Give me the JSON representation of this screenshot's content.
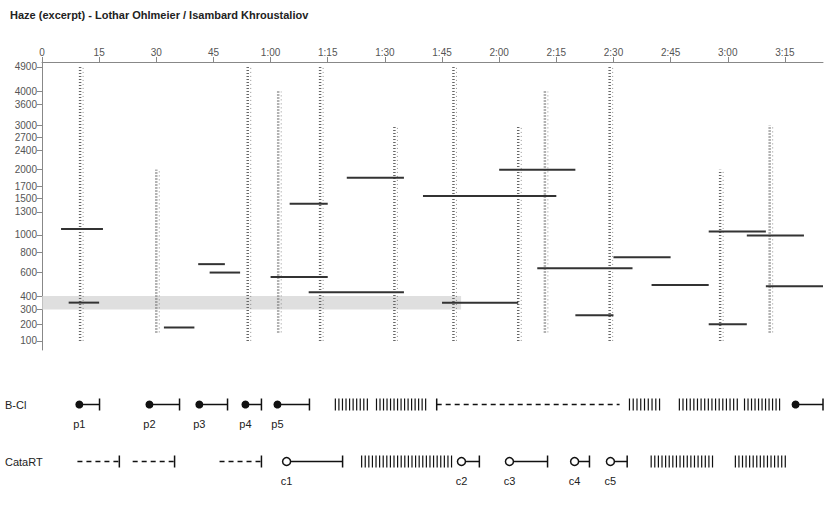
{
  "chart_data": {
    "type": "spectrogram",
    "title": "Haze (excerpt) - Lothar Ohlmeier / Isambard Khroustaliov",
    "xlim": [
      0,
      205
    ],
    "xticks": [
      0,
      15,
      30,
      45,
      {
        "value": 60,
        "label": "1:00"
      },
      {
        "value": 75,
        "label": "1:15"
      },
      {
        "value": 90,
        "label": "1:30"
      },
      {
        "value": 105,
        "label": "1:45"
      },
      {
        "value": 120,
        "label": "2:00"
      },
      {
        "value": 135,
        "label": "2:15"
      },
      {
        "value": 150,
        "label": "2:30"
      },
      {
        "value": 165,
        "label": "2:45"
      },
      {
        "value": 180,
        "label": "3:00"
      },
      {
        "value": 195,
        "label": "3:15"
      }
    ],
    "ylim": [
      50,
      5100
    ],
    "yticks": [
      100,
      200,
      300,
      400,
      600,
      800,
      1000,
      1300,
      1500,
      1700,
      2000,
      2400,
      2700,
      3000,
      3600,
      4000,
      4900
    ],
    "grid": false,
    "color": "#333333",
    "highlight": {
      "start": 0,
      "end": 110,
      "low": 300,
      "high": 400,
      "color": "#d4d4d4"
    },
    "bursts": {
      "color": "#666666",
      "items": [
        {
          "time": 10,
          "low": 100,
          "high": 4900
        },
        {
          "time": 30,
          "low": 150,
          "high": 2000
        },
        {
          "time": 54,
          "low": 100,
          "high": 4900
        },
        {
          "time": 62,
          "low": 150,
          "high": 4000
        },
        {
          "time": 73,
          "low": 100,
          "high": 4900
        },
        {
          "time": 92.5,
          "low": 100,
          "high": 3000
        },
        {
          "time": 108,
          "low": 100,
          "high": 4900
        },
        {
          "time": 125,
          "low": 100,
          "high": 3000
        },
        {
          "time": 132,
          "low": 150,
          "high": 4000
        },
        {
          "time": 149,
          "low": 100,
          "high": 4900
        },
        {
          "time": 178,
          "low": 100,
          "high": 2000
        },
        {
          "time": 191,
          "low": 150,
          "high": 3000
        }
      ]
    },
    "partials": [
      {
        "start": 5,
        "end": 16,
        "freq": 1070
      },
      {
        "start": 7,
        "end": 15,
        "freq": 350
      },
      {
        "start": 41,
        "end": 48,
        "freq": 680
      },
      {
        "start": 44,
        "end": 52,
        "freq": 600
      },
      {
        "start": 32,
        "end": 40,
        "freq": 180
      },
      {
        "start": 60,
        "end": 75,
        "freq": 560
      },
      {
        "start": 65,
        "end": 75,
        "freq": 1420
      },
      {
        "start": 100,
        "end": 135,
        "freq": 1540
      },
      {
        "start": 70,
        "end": 95,
        "freq": 430
      },
      {
        "start": 130,
        "end": 155,
        "freq": 640
      },
      {
        "start": 105,
        "end": 125,
        "freq": 350
      },
      {
        "start": 160,
        "end": 175,
        "freq": 490
      },
      {
        "start": 150,
        "end": 165,
        "freq": 750
      },
      {
        "start": 185,
        "end": 200,
        "freq": 990
      },
      {
        "start": 190,
        "end": 205,
        "freq": 480
      },
      {
        "start": 175,
        "end": 190,
        "freq": 1040
      },
      {
        "start": 120,
        "end": 140,
        "freq": 2000
      },
      {
        "start": 80,
        "end": 95,
        "freq": 1850
      },
      {
        "start": 175,
        "end": 185,
        "freq": 200
      },
      {
        "start": 140,
        "end": 150,
        "freq": 260
      }
    ],
    "tracks": [
      {
        "name": "B-Cl",
        "color": "#111111",
        "segments": [
          {
            "start": 9.8,
            "end": 15.1,
            "line_style": "solid",
            "marker": "dot",
            "label": "p1"
          },
          {
            "start": 28.2,
            "end": 36.1,
            "line_style": "solid",
            "marker": "dot",
            "label": "p2"
          },
          {
            "start": 41.3,
            "end": 48.7,
            "line_style": "solid",
            "marker": "dot",
            "label": "p3"
          },
          {
            "start": 53.4,
            "end": 57.6,
            "line_style": "solid",
            "marker": "dot",
            "label": "p4"
          },
          {
            "start": 61.8,
            "end": 70.2,
            "line_style": "solid",
            "marker": "dot",
            "label": "p5"
          },
          {
            "start": 77.0,
            "end": 85.4,
            "line_style": "hatched",
            "marker": "none"
          },
          {
            "start": 87.8,
            "end": 100.7,
            "line_style": "hatched",
            "marker": "none"
          },
          {
            "start": 103.6,
            "end": 151.6,
            "line_style": "dashed",
            "marker": "bar_start"
          },
          {
            "start": 154.2,
            "end": 162.1,
            "line_style": "hatched",
            "marker": "none"
          },
          {
            "start": 167.3,
            "end": 182.5,
            "line_style": "hatched",
            "marker": "none"
          },
          {
            "start": 184.4,
            "end": 193.6,
            "line_style": "hatched",
            "marker": "none"
          },
          {
            "start": 197.8,
            "end": 205,
            "line_style": "solid",
            "marker": "dot"
          }
        ]
      },
      {
        "name": "CataRT",
        "color": "#111111",
        "segments": [
          {
            "start": 9.3,
            "end": 20.3,
            "line_style": "dashed",
            "marker": "bar_end"
          },
          {
            "start": 23.8,
            "end": 34.8,
            "line_style": "dashed",
            "marker": "bar_end"
          },
          {
            "start": 46.6,
            "end": 57.6,
            "line_style": "dashed",
            "marker": "bar_end"
          },
          {
            "start": 64.2,
            "end": 78.9,
            "line_style": "solid",
            "marker": "ring",
            "label": "c1"
          },
          {
            "start": 83.9,
            "end": 107.5,
            "line_style": "hatched",
            "marker": "none"
          },
          {
            "start": 110.1,
            "end": 114.8,
            "line_style": "solid",
            "marker": "ring",
            "label": "c2"
          },
          {
            "start": 122.7,
            "end": 132.7,
            "line_style": "solid",
            "marker": "ring",
            "label": "c3"
          },
          {
            "start": 139.8,
            "end": 143.7,
            "line_style": "solid",
            "marker": "ring",
            "label": "c4"
          },
          {
            "start": 149.2,
            "end": 153.6,
            "line_style": "solid",
            "marker": "ring",
            "label": "c5"
          },
          {
            "start": 159.9,
            "end": 176.0,
            "line_style": "hatched",
            "marker": "none"
          },
          {
            "start": 182.0,
            "end": 195.1,
            "line_style": "hatched",
            "marker": "none"
          }
        ]
      }
    ]
  }
}
